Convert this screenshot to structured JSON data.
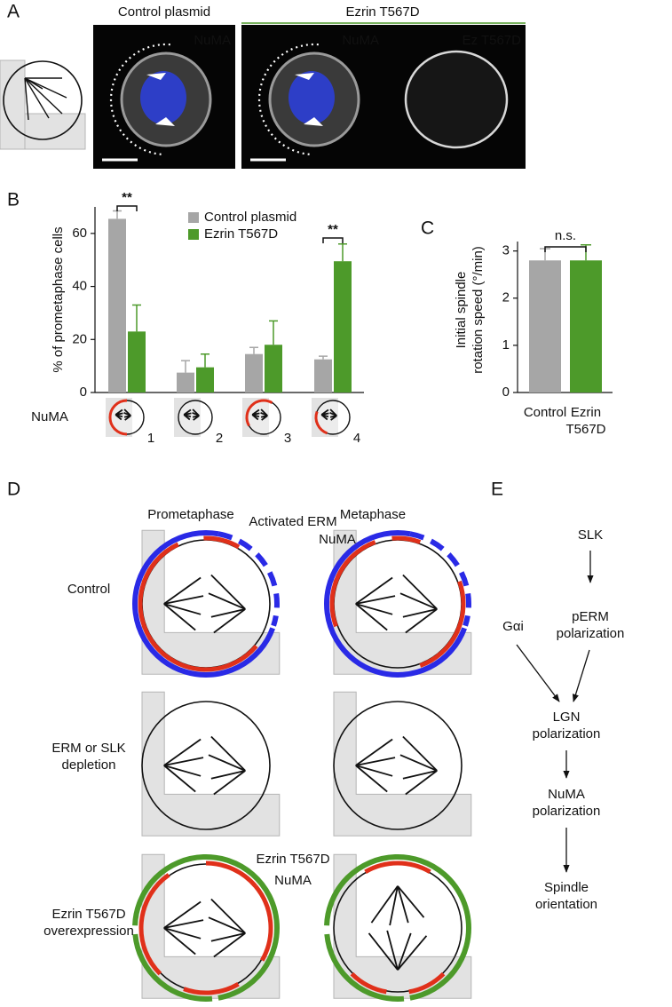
{
  "panel_a": {
    "label": "A",
    "headers": [
      "Control plasmid",
      "Ezrin T567D"
    ],
    "header_colors": [
      "#8c8c8c",
      "#4d9a2a"
    ],
    "image_labels": [
      "NuMA",
      "NuMA",
      "Ez T567D"
    ]
  },
  "chart_data": [
    {
      "type": "bar",
      "panel_label": "B",
      "ylabel": "% of prometaphase cells",
      "categories": [
        "1",
        "2",
        "3",
        "4"
      ],
      "category_marker_label": "NuMA",
      "series": [
        {
          "name": "Control plasmid",
          "color": "#a6a6a6",
          "values": [
            65.5,
            7.5,
            14.5,
            12.5
          ],
          "errors": [
            3,
            4.5,
            2.5,
            1.2
          ]
        },
        {
          "name": "Ezrin T567D",
          "color": "#4d9a2a",
          "values": [
            23,
            9.5,
            18,
            49.5
          ],
          "errors": [
            10,
            5,
            9,
            6.5
          ]
        }
      ],
      "ylim": [
        0,
        70
      ],
      "yticks": [
        0,
        20,
        40,
        60
      ],
      "annotations": [
        "**",
        "**"
      ]
    },
    {
      "type": "bar",
      "panel_label": "C",
      "ylabel": [
        "Initial spindle",
        "rotation speed (°/min)"
      ],
      "categories": [
        "Control",
        [
          "Ezrin",
          "T567D"
        ]
      ],
      "values": [
        2.8,
        2.8
      ],
      "errors": [
        0.25,
        0.33
      ],
      "colors": [
        "#a6a6a6",
        "#4d9a2a"
      ],
      "label_colors": [
        "#8c8c8c",
        "#4d9a2a"
      ],
      "ylim": [
        0,
        3.2
      ],
      "yticks": [
        0,
        1,
        2,
        3
      ],
      "annotations": [
        "n.s."
      ]
    }
  ],
  "panel_d": {
    "label": "D",
    "columns": [
      "Prometaphase",
      "Metaphase"
    ],
    "rows": [
      "Control",
      [
        "ERM or SLK",
        "depletion"
      ],
      [
        "Ezrin T567D",
        "overexpression"
      ]
    ],
    "annotations": [
      {
        "text": "Activated ERM",
        "color": "#2a2ae6"
      },
      {
        "text": "NuMA",
        "color": "#e0301a"
      },
      {
        "text": "Ezrin T567D",
        "color": "#4d9a2a"
      },
      {
        "text": "NuMA",
        "color": "#e0301a"
      }
    ]
  },
  "panel_e": {
    "label": "E",
    "nodes": [
      "SLK",
      [
        "pERM",
        "polarization"
      ],
      "Gαi",
      [
        "LGN",
        "polarization"
      ],
      [
        "NuMA",
        "polarization"
      ],
      [
        "Spindle",
        "orientation"
      ]
    ]
  }
}
